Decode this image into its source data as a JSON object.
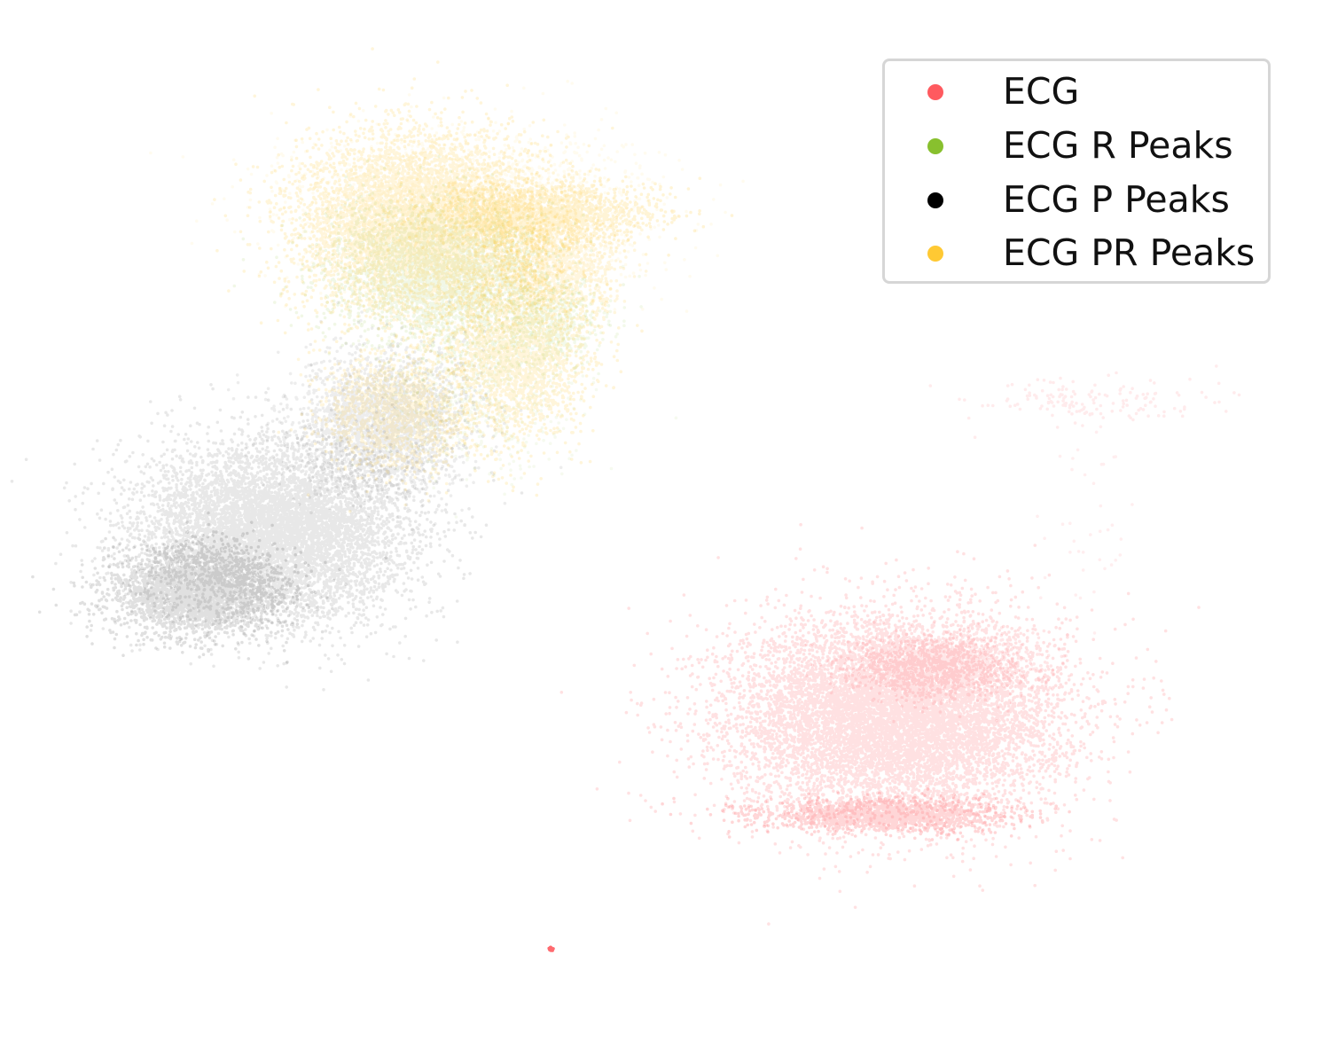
{
  "chart_data": {
    "type": "scatter",
    "title": "",
    "xlabel": "",
    "ylabel": "",
    "axes_visible": false,
    "grid": false,
    "legend_position": "top-right",
    "xlim": [
      0,
      100
    ],
    "ylim": [
      0,
      100
    ],
    "series": [
      {
        "name": "ECG",
        "color": "#ff5a5f",
        "clusters": [
          {
            "center": [
              69.0,
              31.5
            ],
            "spread": [
              6.8,
              5.0
            ],
            "count": 9000,
            "alpha": 0.18
          },
          {
            "center": [
              72.5,
              36.5
            ],
            "spread": [
              3.5,
              1.5
            ],
            "count": 1500,
            "alpha": 0.15
          },
          {
            "center": [
              68.0,
              21.5
            ],
            "spread": [
              5.0,
              0.8
            ],
            "count": 1600,
            "alpha": 0.25
          },
          {
            "center": [
              84.5,
              63.0
            ],
            "spread": [
              5.0,
              1.2
            ],
            "count": 160,
            "alpha": 0.12
          },
          {
            "center": [
              84.0,
              51.5
            ],
            "spread": [
              2.0,
              5.5
            ],
            "count": 40,
            "alpha": 0.1
          },
          {
            "center": [
              40.7,
              8.0
            ],
            "spread": [
              0.1,
              0.1
            ],
            "count": 30,
            "alpha": 0.9
          }
        ]
      },
      {
        "name": "ECG R Peaks",
        "color": "#88c02e",
        "clusters": [
          {
            "center": [
              31.5,
              76.0
            ],
            "spread": [
              4.5,
              3.5
            ],
            "count": 3000,
            "alpha": 0.12
          },
          {
            "center": [
              40.5,
              71.0
            ],
            "spread": [
              2.2,
              2.0
            ],
            "count": 600,
            "alpha": 0.1
          },
          {
            "center": [
              34.0,
              64.0
            ],
            "spread": [
              4.0,
              4.0
            ],
            "count": 700,
            "alpha": 0.08
          }
        ]
      },
      {
        "name": "ECG P Peaks",
        "color": "#000000",
        "clusters": [
          {
            "center": [
              18.0,
              50.0
            ],
            "spread": [
              5.5,
              4.5
            ],
            "count": 7000,
            "alpha": 0.09
          },
          {
            "center": [
              12.0,
              44.0
            ],
            "spread": [
              3.5,
              2.2
            ],
            "count": 3000,
            "alpha": 0.12
          },
          {
            "center": [
              27.0,
              61.0
            ],
            "spread": [
              3.5,
              3.5
            ],
            "count": 2500,
            "alpha": 0.07
          }
        ]
      },
      {
        "name": "ECG PR Peaks",
        "color": "#ffc933",
        "clusters": [
          {
            "center": [
              30.0,
              81.0
            ],
            "spread": [
              5.0,
              4.5
            ],
            "count": 6000,
            "alpha": 0.18
          },
          {
            "center": [
              38.0,
              68.0
            ],
            "spread": [
              3.0,
              4.5
            ],
            "count": 2200,
            "alpha": 0.18
          },
          {
            "center": [
              41.0,
              76.5
            ],
            "spread": [
              2.5,
              2.5
            ],
            "count": 1000,
            "alpha": 0.16
          },
          {
            "center": [
              34.0,
              82.0
            ],
            "spread": [
              7.0,
              4.0
            ],
            "count": 2500,
            "alpha": 0.08
          },
          {
            "center": [
              40.0,
              82.0
            ],
            "spread": [
              4.5,
              1.5
            ],
            "count": 1800,
            "alpha": 0.2
          },
          {
            "center": [
              28.0,
              62.0
            ],
            "spread": [
              3.0,
              3.0
            ],
            "count": 1400,
            "alpha": 0.16
          }
        ]
      }
    ]
  }
}
